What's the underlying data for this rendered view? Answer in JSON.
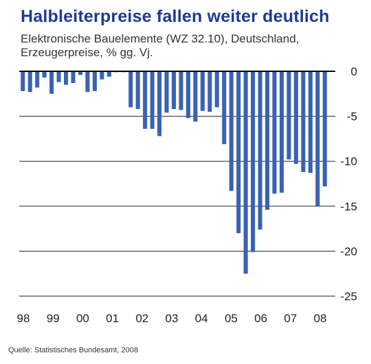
{
  "chart_data": {
    "type": "bar",
    "title": "Halbleiterpreise  fallen  weiter  deutlich",
    "subtitle_lines": [
      "Elektronische Bauelemente (WZ 32.10), Deutschland,",
      "Erzeugerpreise,  % gg. Vj."
    ],
    "source": "Quelle: Statistisches  Bundesamt,  2008",
    "ylim": [
      -25,
      0
    ],
    "yticks": [
      0,
      -5,
      -10,
      -15,
      -20,
      -25
    ],
    "ytick_labels": [
      "0",
      "-5",
      "-10",
      "-15",
      "-20",
      "-25"
    ],
    "xtick_labels": [
      "98",
      "99",
      "00",
      "01",
      "02",
      "03",
      "04",
      "05",
      "06",
      "07",
      "08"
    ],
    "grid": true,
    "color": "#3a62b4",
    "values": [
      -2.2,
      -2.3,
      -1.8,
      -0.7,
      -2.5,
      -1.2,
      -1.5,
      -1.3,
      -0.4,
      -2.3,
      -2.2,
      -0.9,
      -0.6,
      -0.1,
      -0.1,
      -4.0,
      -4.2,
      -6.4,
      -6.4,
      -7.2,
      -4.6,
      -4.2,
      -4.3,
      -5.2,
      -5.6,
      -4.4,
      -4.5,
      -4.0,
      -8.1,
      -13.3,
      -18.0,
      -22.5,
      -20.1,
      -17.6,
      -15.4,
      -13.6,
      -13.5,
      -9.8,
      -10.3,
      -11.2,
      -11.3,
      -15.0,
      -12.8
    ]
  }
}
